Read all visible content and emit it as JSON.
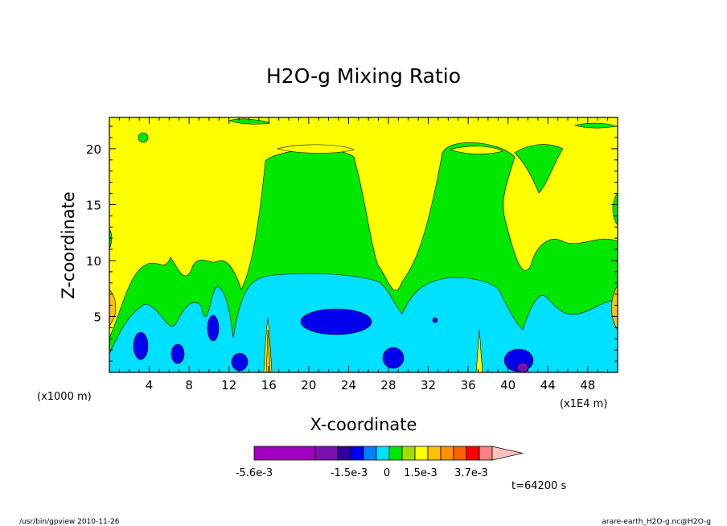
{
  "chart_data": {
    "type": "heatmap",
    "title": "H2O-g Mixing Ratio",
    "xlabel": "X-coordinate",
    "ylabel": "Z-coordinate",
    "x_unit_left": "(x1000 m)",
    "x_unit_right": "(x1E4 m)",
    "xlim": [
      0,
      51
    ],
    "ylim": [
      0,
      22.8
    ],
    "x_ticks": [
      4,
      8,
      12,
      16,
      20,
      24,
      28,
      32,
      36,
      40,
      44,
      48
    ],
    "y_ticks": [
      5,
      10,
      15,
      20
    ],
    "colorbar": {
      "colors": [
        "#a000c0",
        "#7a10b0",
        "#3000a0",
        "#0000ee",
        "#0080ff",
        "#00e0ff",
        "#00e800",
        "#a0e000",
        "#ffff00",
        "#ffc000",
        "#ff9000",
        "#ff6000",
        "#ff0000",
        "#ff8080",
        "#ffc0c0"
      ],
      "labels": [
        "-5.6e-3",
        "-1.5e-3",
        "0",
        "1.5e-3",
        "3.7e-3"
      ]
    },
    "time_label": "t=64200 s"
  },
  "footer": {
    "left": "/usr/bin/gpview  2010-11-26",
    "right": "arare-earth_H2O-g.nc@H2O-g"
  }
}
